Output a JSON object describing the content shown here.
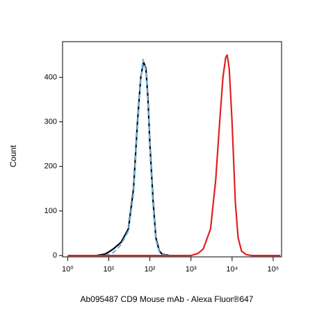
{
  "chart_data": {
    "type": "line",
    "title": "Ab095487 CD9 Mouse mAb - Alexa Fluor®647",
    "ylabel": "Count",
    "xscale": "log",
    "xlim": [
      0.75,
      160000
    ],
    "xticks": [
      {
        "value": 1,
        "label": "10⁰"
      },
      {
        "value": 10,
        "label": "10¹"
      },
      {
        "value": 100,
        "label": "10²"
      },
      {
        "value": 1000,
        "label": "10³"
      },
      {
        "value": 10000,
        "label": "10⁴"
      },
      {
        "value": 100000,
        "label": "10⁵"
      }
    ],
    "ylim": [
      -3,
      480
    ],
    "yticks": [
      0,
      100,
      200,
      300,
      400
    ],
    "series": [
      {
        "color": "#000000",
        "dashed": false,
        "x": [
          5,
          8,
          10,
          13,
          20,
          30,
          40,
          50,
          60,
          70,
          80,
          90,
          100,
          120,
          140,
          170,
          200,
          300
        ],
        "values": [
          0,
          3,
          8,
          15,
          30,
          60,
          150,
          300,
          400,
          435,
          420,
          350,
          250,
          120,
          40,
          10,
          3,
          0
        ]
      },
      {
        "color": "#6ab4e8",
        "dashed": true,
        "x": [
          8,
          12,
          15,
          20,
          30,
          40,
          50,
          60,
          68,
          80,
          90,
          100,
          120,
          140,
          170,
          200,
          300
        ],
        "values": [
          0,
          5,
          12,
          25,
          55,
          140,
          290,
          395,
          440,
          415,
          340,
          240,
          110,
          35,
          8,
          2,
          0
        ]
      },
      {
        "color": "#e02020",
        "dashed": false,
        "x": [
          1,
          500,
          1000,
          1500,
          2000,
          3000,
          4000,
          5000,
          6000,
          7000,
          7600,
          8500,
          10000,
          12000,
          14000,
          17000,
          22000,
          30000,
          150000
        ],
        "values": [
          0,
          0,
          0,
          5,
          15,
          60,
          170,
          300,
          400,
          445,
          450,
          420,
          300,
          120,
          40,
          10,
          2,
          0,
          0
        ]
      }
    ]
  }
}
